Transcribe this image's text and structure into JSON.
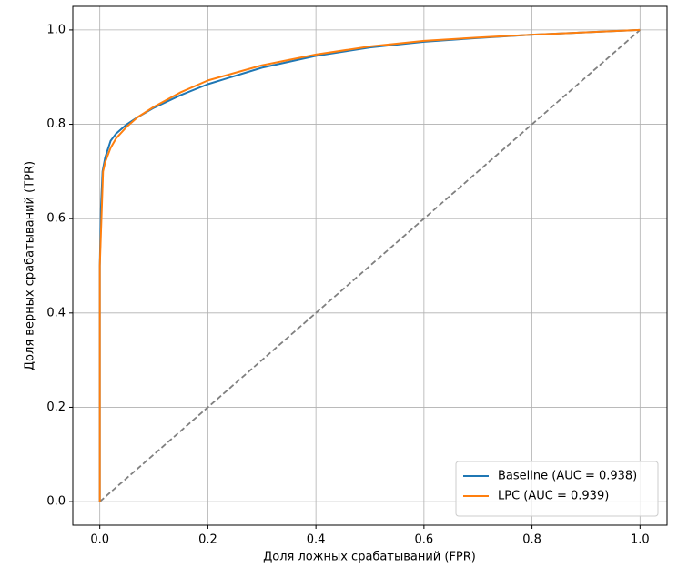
{
  "chart_data": {
    "type": "line",
    "xlabel": "Доля ложных срабатываний (FPR)",
    "ylabel": "Доля верных срабатываний (TPR)",
    "xlim": [
      -0.05,
      1.05
    ],
    "ylim": [
      -0.05,
      1.05
    ],
    "xticks": [
      {
        "value": 0,
        "label": "0.0"
      },
      {
        "value": 0.2,
        "label": "0.2"
      },
      {
        "value": 0.4,
        "label": "0.4"
      },
      {
        "value": 0.6,
        "label": "0.6"
      },
      {
        "value": 0.8,
        "label": "0.8"
      },
      {
        "value": 1,
        "label": "1.0"
      }
    ],
    "yticks": [
      {
        "value": 0,
        "label": "0.0"
      },
      {
        "value": 0.2,
        "label": "0.2"
      },
      {
        "value": 0.4,
        "label": "0.4"
      },
      {
        "value": 0.6,
        "label": "0.6"
      },
      {
        "value": 0.8,
        "label": "0.8"
      },
      {
        "value": 1,
        "label": "1.0"
      }
    ],
    "grid": true,
    "legend": "lower right",
    "series": [
      {
        "name": "Baseline (AUC = 0.938)",
        "color": "#1f77b4",
        "x": [
          0,
          0,
          0.002,
          0.005,
          0.01,
          0.02,
          0.03,
          0.05,
          0.07,
          0.1,
          0.15,
          0.2,
          0.3,
          0.4,
          0.5,
          0.6,
          0.7,
          0.8,
          0.9,
          1
        ],
        "values": [
          0,
          0.5,
          0.62,
          0.7,
          0.73,
          0.765,
          0.78,
          0.8,
          0.815,
          0.835,
          0.862,
          0.885,
          0.92,
          0.945,
          0.963,
          0.975,
          0.983,
          0.99,
          0.995,
          1
        ]
      },
      {
        "name": "LPC (AUC = 0.939)",
        "color": "#ff7f0e",
        "x": [
          0,
          0,
          0.003,
          0.006,
          0.01,
          0.02,
          0.03,
          0.05,
          0.07,
          0.1,
          0.15,
          0.2,
          0.3,
          0.4,
          0.5,
          0.6,
          0.7,
          0.8,
          0.9,
          1
        ],
        "values": [
          0,
          0.5,
          0.6,
          0.7,
          0.72,
          0.75,
          0.77,
          0.795,
          0.815,
          0.837,
          0.868,
          0.893,
          0.925,
          0.948,
          0.965,
          0.977,
          0.984,
          0.99,
          0.995,
          1
        ]
      }
    ],
    "reference_line": {
      "x": [
        0,
        1
      ],
      "y": [
        0,
        1
      ],
      "color": "#808080",
      "style": "dashed"
    }
  }
}
